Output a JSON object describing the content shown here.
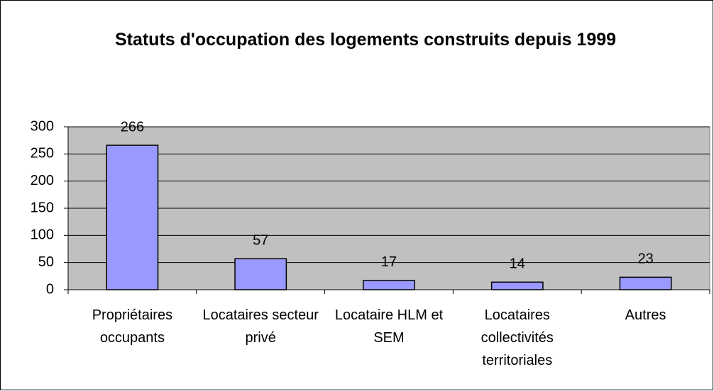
{
  "chart_data": {
    "type": "bar",
    "title": "Statuts d'occupation des logements construits depuis 1999",
    "categories": [
      "Propriétaires occupants",
      "Locataires secteur privé",
      "Locataire HLM et SEM",
      "Locataires collectivités territoriales",
      "Autres"
    ],
    "values": [
      266,
      57,
      17,
      14,
      23
    ],
    "color": "#9999ff",
    "ylim": [
      0,
      300
    ],
    "yticks": [
      0,
      50,
      100,
      150,
      200,
      250,
      300
    ],
    "grid": true
  }
}
